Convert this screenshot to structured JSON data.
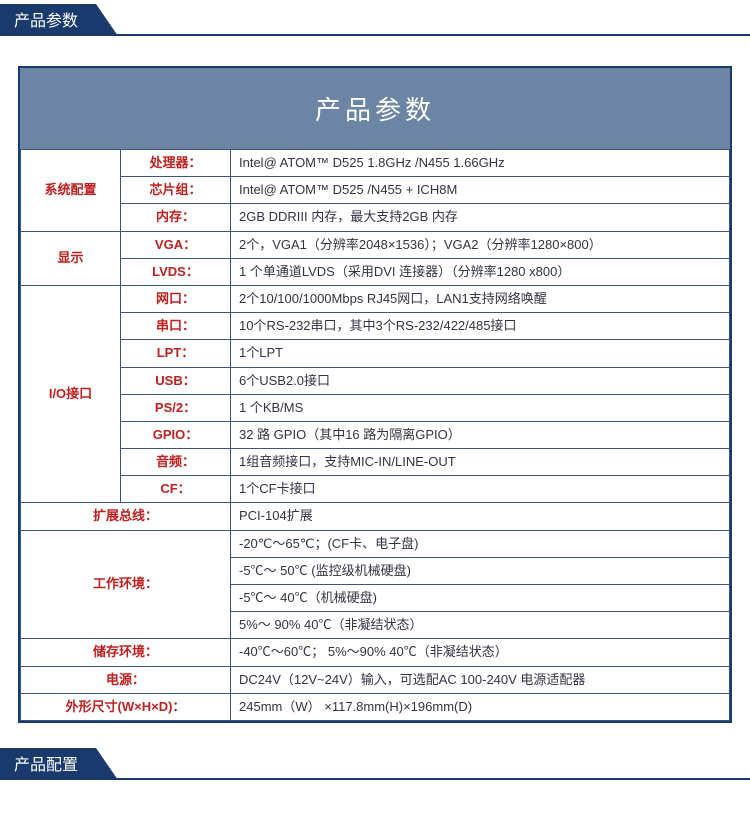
{
  "tabs": {
    "top": "产品参数",
    "bottom": "产品配置"
  },
  "title": "产品参数",
  "colors": {
    "tab_bg": "#1a3a6e",
    "title_bg": "#6d85a5",
    "border": "#3a5680",
    "label_red": "#c02020",
    "value": "#333344"
  },
  "rows": [
    {
      "cat": "系统配置",
      "catspan": 3,
      "sub": "处理器：",
      "val": "Intel@ ATOM™  D525  1.8GHz /N455   1.66GHz"
    },
    {
      "sub": "芯片组：",
      "val": "Intel@ ATOM™  D525 /N455 + ICH8M"
    },
    {
      "sub": "内存：",
      "val": "2GB DDRIII 内存，最大支持2GB 内存"
    },
    {
      "cat": "显示",
      "catspan": 2,
      "sub": "VGA：",
      "val": "2个，VGA1（分辨率2048×1536）；VGA2（分辨率1280×800）"
    },
    {
      "sub": "LVDS：",
      "val": "1 个单通道LVDS（采用DVI 连接器）（分辨率1280 x800）"
    },
    {
      "cat": "I/O接口",
      "catspan": 8,
      "sub": "网口：",
      "val": "2个10/100/1000Mbps RJ45网口，LAN1支持网络唤醒"
    },
    {
      "sub": "串口：",
      "val": "10个RS-232串口，其中3个RS-232/422/485接口"
    },
    {
      "sub": "LPT：",
      "val": "1个LPT"
    },
    {
      "sub": "USB：",
      "val": "6个USB2.0接口"
    },
    {
      "sub": "PS/2：",
      "val": "1 个KB/MS"
    },
    {
      "sub": "GPIO：",
      "val": "32 路 GPIO（其中16 路为隔离GPIO）"
    },
    {
      "sub": "音频：",
      "val": "1组音频接口，支持MIC-IN/LINE-OUT"
    },
    {
      "sub": "CF：",
      "val": "1个CF卡接口"
    },
    {
      "wide": "扩展总线：",
      "val": "PCI-104扩展"
    },
    {
      "wide": "工作环境：",
      "widespan": 4,
      "val": "-20℃～65℃；(CF卡、电子盘)"
    },
    {
      "val": "-5℃～ 50℃  (监控级机械硬盘)"
    },
    {
      "val": "-5℃～ 40℃（机械硬盘)"
    },
    {
      "val": "5%～ 90% 40℃（非凝结状态）"
    },
    {
      "wide": "储存环境：",
      "val": "-40℃～60℃； 5%～90% 40℃（非凝结状态）"
    },
    {
      "wide": "电源：",
      "val": "DC24V（12V~24V）输入，可选配AC 100-240V 电源适配器"
    },
    {
      "wide": "外形尺寸(W×H×D)：",
      "val": "245mm（W） ×117.8mm(H)×196mm(D)"
    }
  ]
}
